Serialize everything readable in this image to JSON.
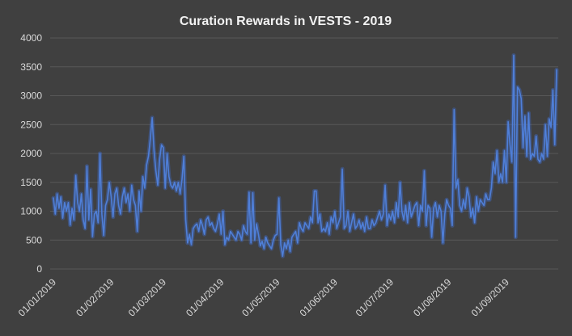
{
  "chart_data": {
    "type": "line",
    "title": "Curation Rewards in VESTS - 2019",
    "xlabel": "",
    "ylabel": "",
    "ylim": [
      0,
      4000
    ],
    "yticks": [
      "0",
      "500",
      "1000",
      "1500",
      "2000",
      "2500",
      "3000",
      "3500",
      "4000"
    ],
    "x_ticks": [
      "01/01/2019",
      "01/02/2019",
      "01/03/2019",
      "01/04/2019",
      "01/05/2019",
      "01/06/2019",
      "01/07/2019",
      "01/08/2019",
      "01/09/2019"
    ],
    "grid": true,
    "legend": "none",
    "series": [
      {
        "color": "#4f7fd8",
        "values": [
          1230,
          950,
          1300,
          1050,
          1250,
          880,
          1150,
          1000,
          1150,
          760,
          1050,
          850,
          1620,
          1150,
          1000,
          1300,
          850,
          700,
          1780,
          850,
          1380,
          560,
          950,
          1000,
          800,
          2000,
          950,
          580,
          1100,
          1200,
          1500,
          1250,
          900,
          1300,
          1400,
          1100,
          950,
          1250,
          1400,
          1150,
          1300,
          1000,
          1450,
          1200,
          1100,
          650,
          1350,
          1000,
          1600,
          1400,
          1800,
          1950,
          2250,
          2620,
          2050,
          1700,
          1450,
          1900,
          2150,
          2100,
          1400,
          2000,
          1600,
          1450,
          1400,
          1500,
          1350,
          1500,
          1300,
          1550,
          1950,
          850,
          450,
          600,
          420,
          700,
          750,
          780,
          650,
          850,
          750,
          600,
          850,
          900,
          750,
          800,
          700,
          650,
          780,
          950,
          600,
          1000,
          420,
          550,
          500,
          650,
          600,
          550,
          500,
          650,
          600,
          500,
          750,
          650,
          600,
          1330,
          450,
          1320,
          500,
          780,
          600,
          400,
          480,
          350,
          550,
          450,
          400,
          350,
          500,
          580,
          600,
          1230,
          420,
          220,
          450,
          350,
          500,
          300,
          550,
          600,
          650,
          450,
          800,
          700,
          650,
          800,
          750,
          700,
          900,
          800,
          1350,
          1350,
          800,
          950,
          650,
          700,
          650,
          800,
          600,
          900,
          800,
          1000,
          700,
          800,
          900,
          1730,
          700,
          750,
          1000,
          650,
          800,
          950,
          700,
          750,
          850,
          700,
          800,
          650,
          900,
          700,
          700,
          850,
          750,
          800,
          900,
          1000,
          850,
          950,
          1450,
          750,
          950,
          850,
          1000,
          800,
          1150,
          900,
          1500,
          1000,
          850,
          1100,
          800,
          1150,
          900,
          1000,
          1100,
          1150,
          750,
          1100,
          1000,
          1700,
          750,
          1100,
          1050,
          550,
          1050,
          1150,
          900,
          1100,
          1000,
          450,
          950,
          1200,
          1100,
          1050,
          750,
          2760,
          1400,
          1550,
          1100,
          1000,
          1200,
          1050,
          1400,
          1250,
          900,
          1050,
          800,
          1250,
          1000,
          1200,
          1150,
          1100,
          1300,
          1200,
          1200,
          1400,
          1850,
          1650,
          2050,
          1500,
          1650,
          1500,
          2050,
          1500,
          2550,
          2150,
          1850,
          3700,
          550,
          3150,
          3100,
          2950,
          2100,
          2650,
          1950,
          2700,
          1900,
          2000,
          1950,
          2300,
          1900,
          1850,
          2000,
          1900,
          2500,
          1950,
          2600,
          2450,
          3100,
          2150,
          3450
        ]
      }
    ]
  }
}
